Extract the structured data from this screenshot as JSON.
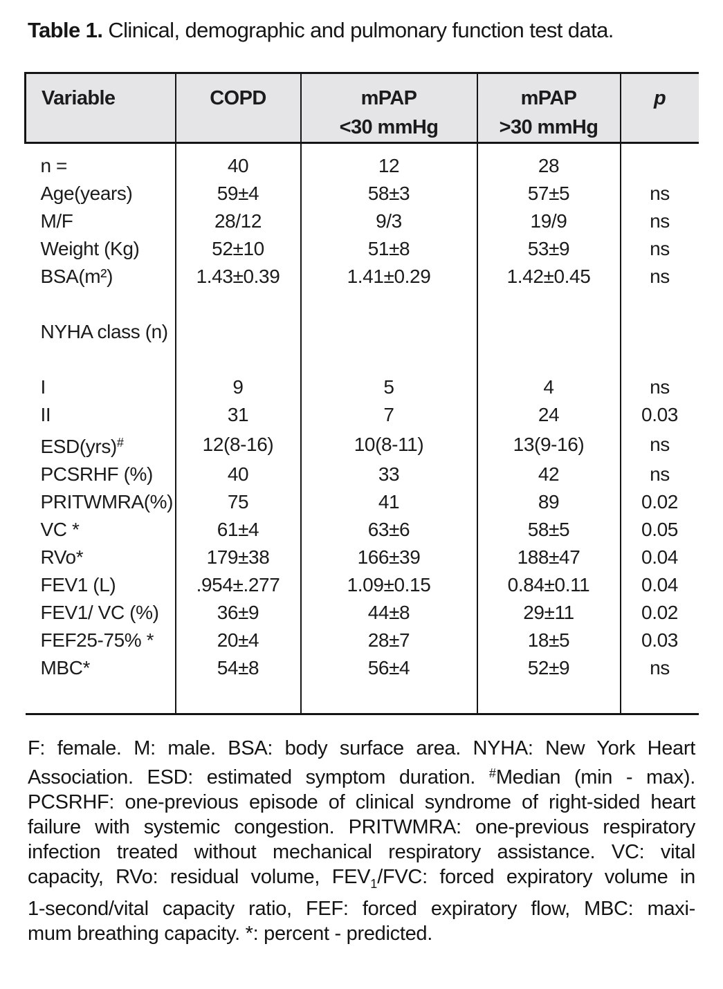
{
  "title": {
    "bold": "Table 1.",
    "rest": " Clinical, demographic and pulmonary function test data."
  },
  "colors": {
    "header_bg": "#e5e5e7",
    "border": "#141414",
    "text": "#1b1b1b"
  },
  "table": {
    "headers": [
      {
        "line1": "Variable",
        "line2": ""
      },
      {
        "line1": "COPD",
        "line2": ""
      },
      {
        "line1": "mPAP",
        "line2": "<30 mmHg"
      },
      {
        "line1": "mPAP",
        "line2": ">30 mmHg"
      },
      {
        "line1": "p",
        "line2": ""
      }
    ],
    "rows": [
      [
        "n =",
        "40",
        "12",
        "28",
        ""
      ],
      [
        "Age(years)",
        "59±4",
        "58±3",
        "57±5",
        "ns"
      ],
      [
        "M/F",
        "28/12",
        "9/3",
        "19/9",
        "ns"
      ],
      [
        "Weight (Kg)",
        "52±10",
        "51±8",
        "53±9",
        "ns"
      ],
      [
        "BSA(m²)",
        "1.43±0.39",
        "1.41±0.29",
        "1.42±0.45",
        "ns"
      ],
      [
        "",
        "",
        "",
        "",
        ""
      ],
      [
        "NYHA class (n)",
        "",
        "",
        "",
        ""
      ],
      [
        "",
        "",
        "",
        "",
        ""
      ],
      [
        "I",
        "9",
        "5",
        "4",
        "ns"
      ],
      [
        "II",
        "31",
        "7",
        "24",
        "0.03"
      ],
      [
        "ESD(yrs)<sup>#</sup>",
        "12(8-16)",
        "10(8-11)",
        "13(9-16)",
        "ns"
      ],
      [
        "PCSRHF (%)",
        "40",
        "33",
        "42",
        "ns"
      ],
      [
        "PRITWMRA(%)",
        "75",
        "41",
        "89",
        "0.02"
      ],
      [
        "VC *",
        "61±4",
        "63±6",
        "58±5",
        "0.05"
      ],
      [
        "RVo*",
        "179±38",
        "166±39",
        "188±47",
        "0.04"
      ],
      [
        "FEV1 (L)",
        ".954±.277",
        "1.09±0.15",
        "0.84±0.11",
        "0.04"
      ],
      [
        "FEV1/ VC (%)",
        "36±9",
        "44±8",
        "29±11",
        "0.02"
      ],
      [
        "FEF25-75% *",
        "20±4",
        "28±7",
        "18±5",
        "0.03"
      ],
      [
        "MBC*",
        "54±8",
        "56±4",
        "52±9",
        "ns"
      ]
    ]
  },
  "footnote": {
    "lines": [
      "F: female. M: male. BSA: body surface area. NYHA: New York Heart",
      "Association. ESD: estimated symptom duration. <sup>#</sup>Median (min - max).",
      "PCSRHF: one-previous episode of clinical syndrome of right-sided heart",
      "failure with systemic congestion. PRITWMRA: one-previous respiratory",
      "infection treated without mechanical respiratory assistance. VC: vital",
      "capacity, RVo: residual volume, FEV<sub>1</sub>/FVC: forced expiratory volume in",
      "1-second/vital capacity ratio, FEF: forced expiratory flow, MBC: maxi-",
      "mum breathing capacity. *: percent - predicted."
    ]
  }
}
